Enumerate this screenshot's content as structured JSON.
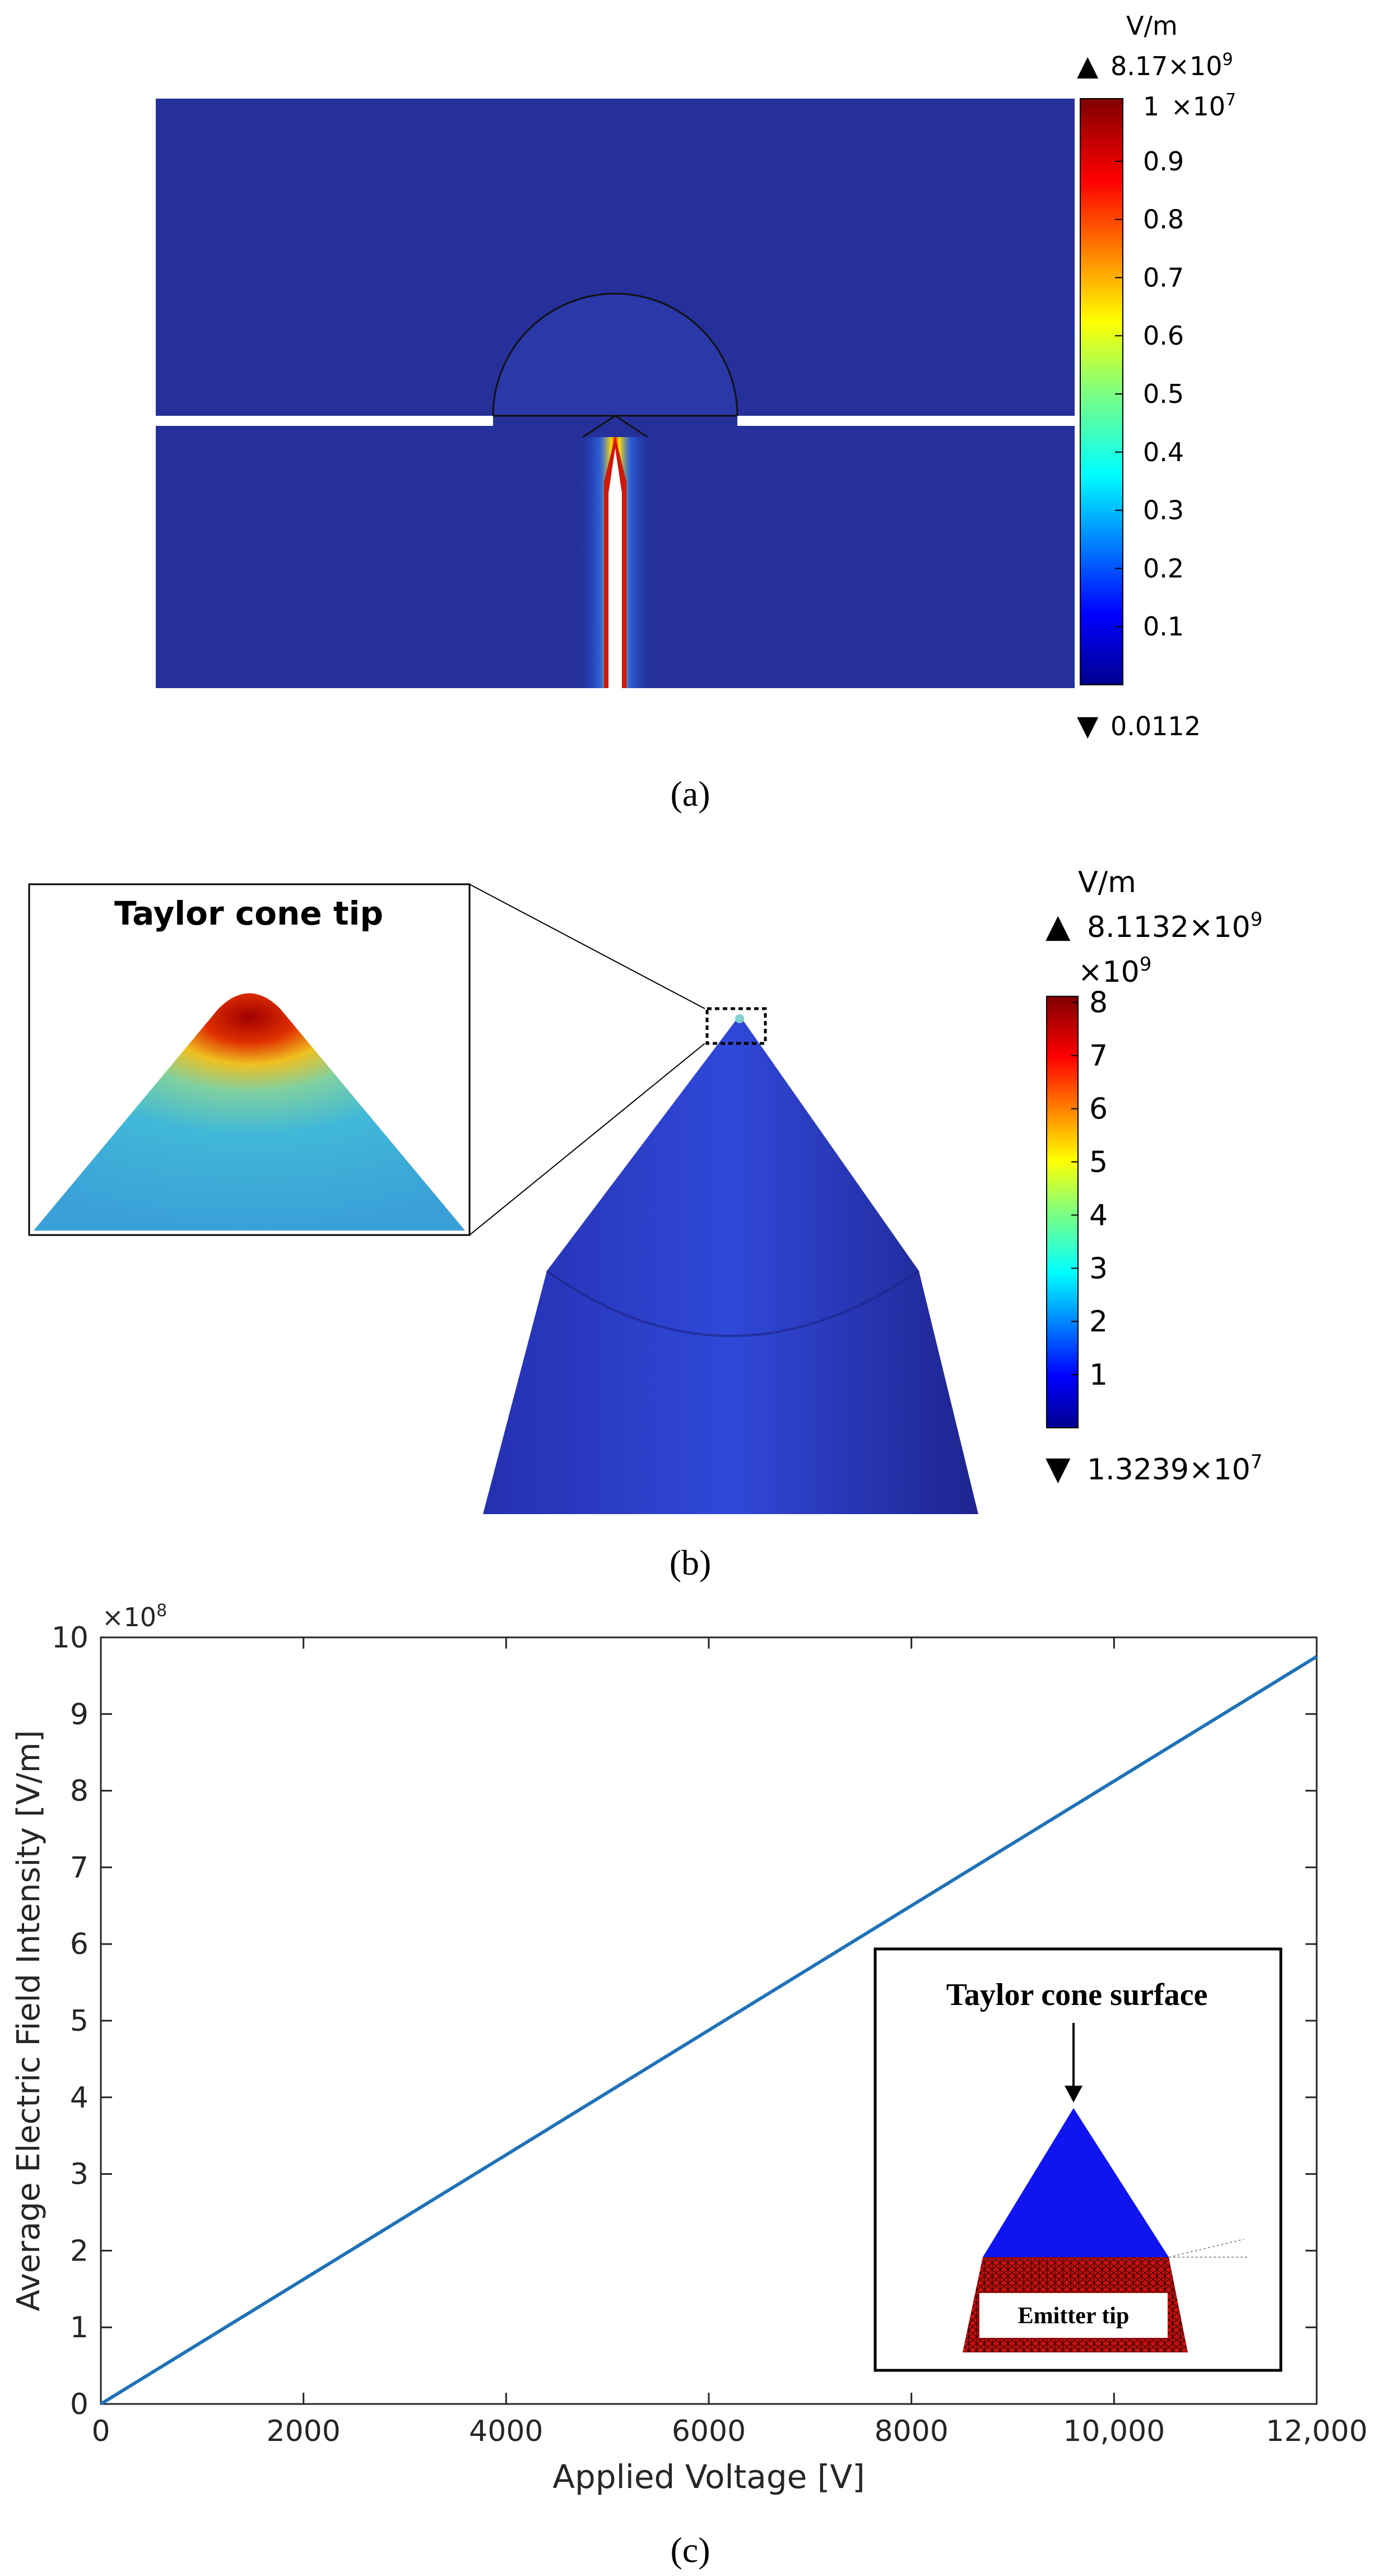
{
  "panel_a": {
    "caption": "(a)",
    "colorbar": {
      "unit": "V/m",
      "max_marker": "▲",
      "max_text": "8.17×10",
      "max_exp": "9",
      "scale_text": "×10",
      "scale_exp": "7",
      "top_tick": "1",
      "ticks": [
        "0.9",
        "0.8",
        "0.7",
        "0.6",
        "0.5",
        "0.4",
        "0.3",
        "0.2",
        "0.1"
      ],
      "min_marker": "▼",
      "min_text": "0.0112"
    }
  },
  "panel_b": {
    "caption": "(b)",
    "inset_title": "Taylor cone tip",
    "colorbar": {
      "unit": "V/m",
      "max_marker": "▲",
      "max_text": "8.1132×10",
      "max_exp": "9",
      "scale_text": "×10",
      "scale_exp": "9",
      "ticks": [
        "8",
        "7",
        "6",
        "5",
        "4",
        "3",
        "2",
        "1"
      ],
      "min_marker": "▼",
      "min_text": "1.3239×10",
      "min_exp": "7"
    }
  },
  "panel_c": {
    "caption": "(c)",
    "inset_title": "Taylor cone surface",
    "inset_label": "Emitter tip"
  },
  "chart_data": {
    "type": "line",
    "xlabel": "Applied Voltage [V]",
    "ylabel": "Average Electric Field Intensity [V/m]",
    "y_multiplier_text": "×10",
    "y_multiplier_exp": "8",
    "xlim": [
      0,
      12000
    ],
    "ylim": [
      0,
      10
    ],
    "x_ticks": [
      0,
      2000,
      4000,
      6000,
      8000,
      10000,
      12000
    ],
    "x_tick_labels": [
      "0",
      "2000",
      "4000",
      "6000",
      "8000",
      "10,000",
      "12,000"
    ],
    "y_ticks": [
      0,
      1,
      2,
      3,
      4,
      5,
      6,
      7,
      8,
      9,
      10
    ],
    "y_tick_labels": [
      "0",
      "1",
      "2",
      "3",
      "4",
      "5",
      "6",
      "7",
      "8",
      "9",
      "10"
    ],
    "grid": false,
    "series": [
      {
        "x": [
          0,
          12000
        ],
        "y": [
          0,
          9.75
        ],
        "color": "#1f72b8"
      }
    ]
  }
}
